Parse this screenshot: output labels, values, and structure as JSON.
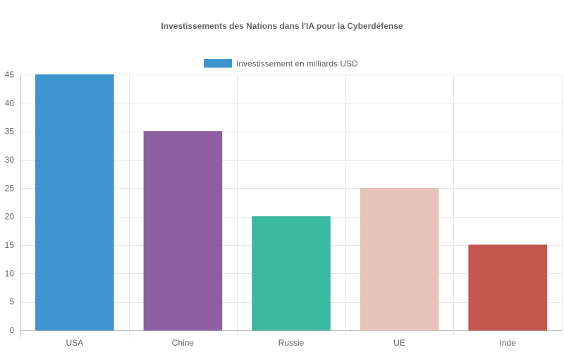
{
  "chart_data": {
    "type": "bar",
    "title": "Investissements des Nations dans l'IA pour la Cyberdéfense",
    "categories": [
      "USA",
      "Chine",
      "Russie",
      "UE",
      "Inde"
    ],
    "series": [
      {
        "name": "Investissement en milliards USD",
        "values": [
          45,
          35,
          20,
          25,
          15
        ],
        "colors": [
          "#3e95cd",
          "#8e5ea2",
          "#3cba9f",
          "#e8c3b9",
          "#c45850"
        ],
        "legend_color": "#3e95cd"
      }
    ],
    "ylim": [
      0,
      45
    ],
    "ytick_step": 5,
    "xlabel": "",
    "ylabel": "",
    "grid": true,
    "legend_position": "top"
  }
}
